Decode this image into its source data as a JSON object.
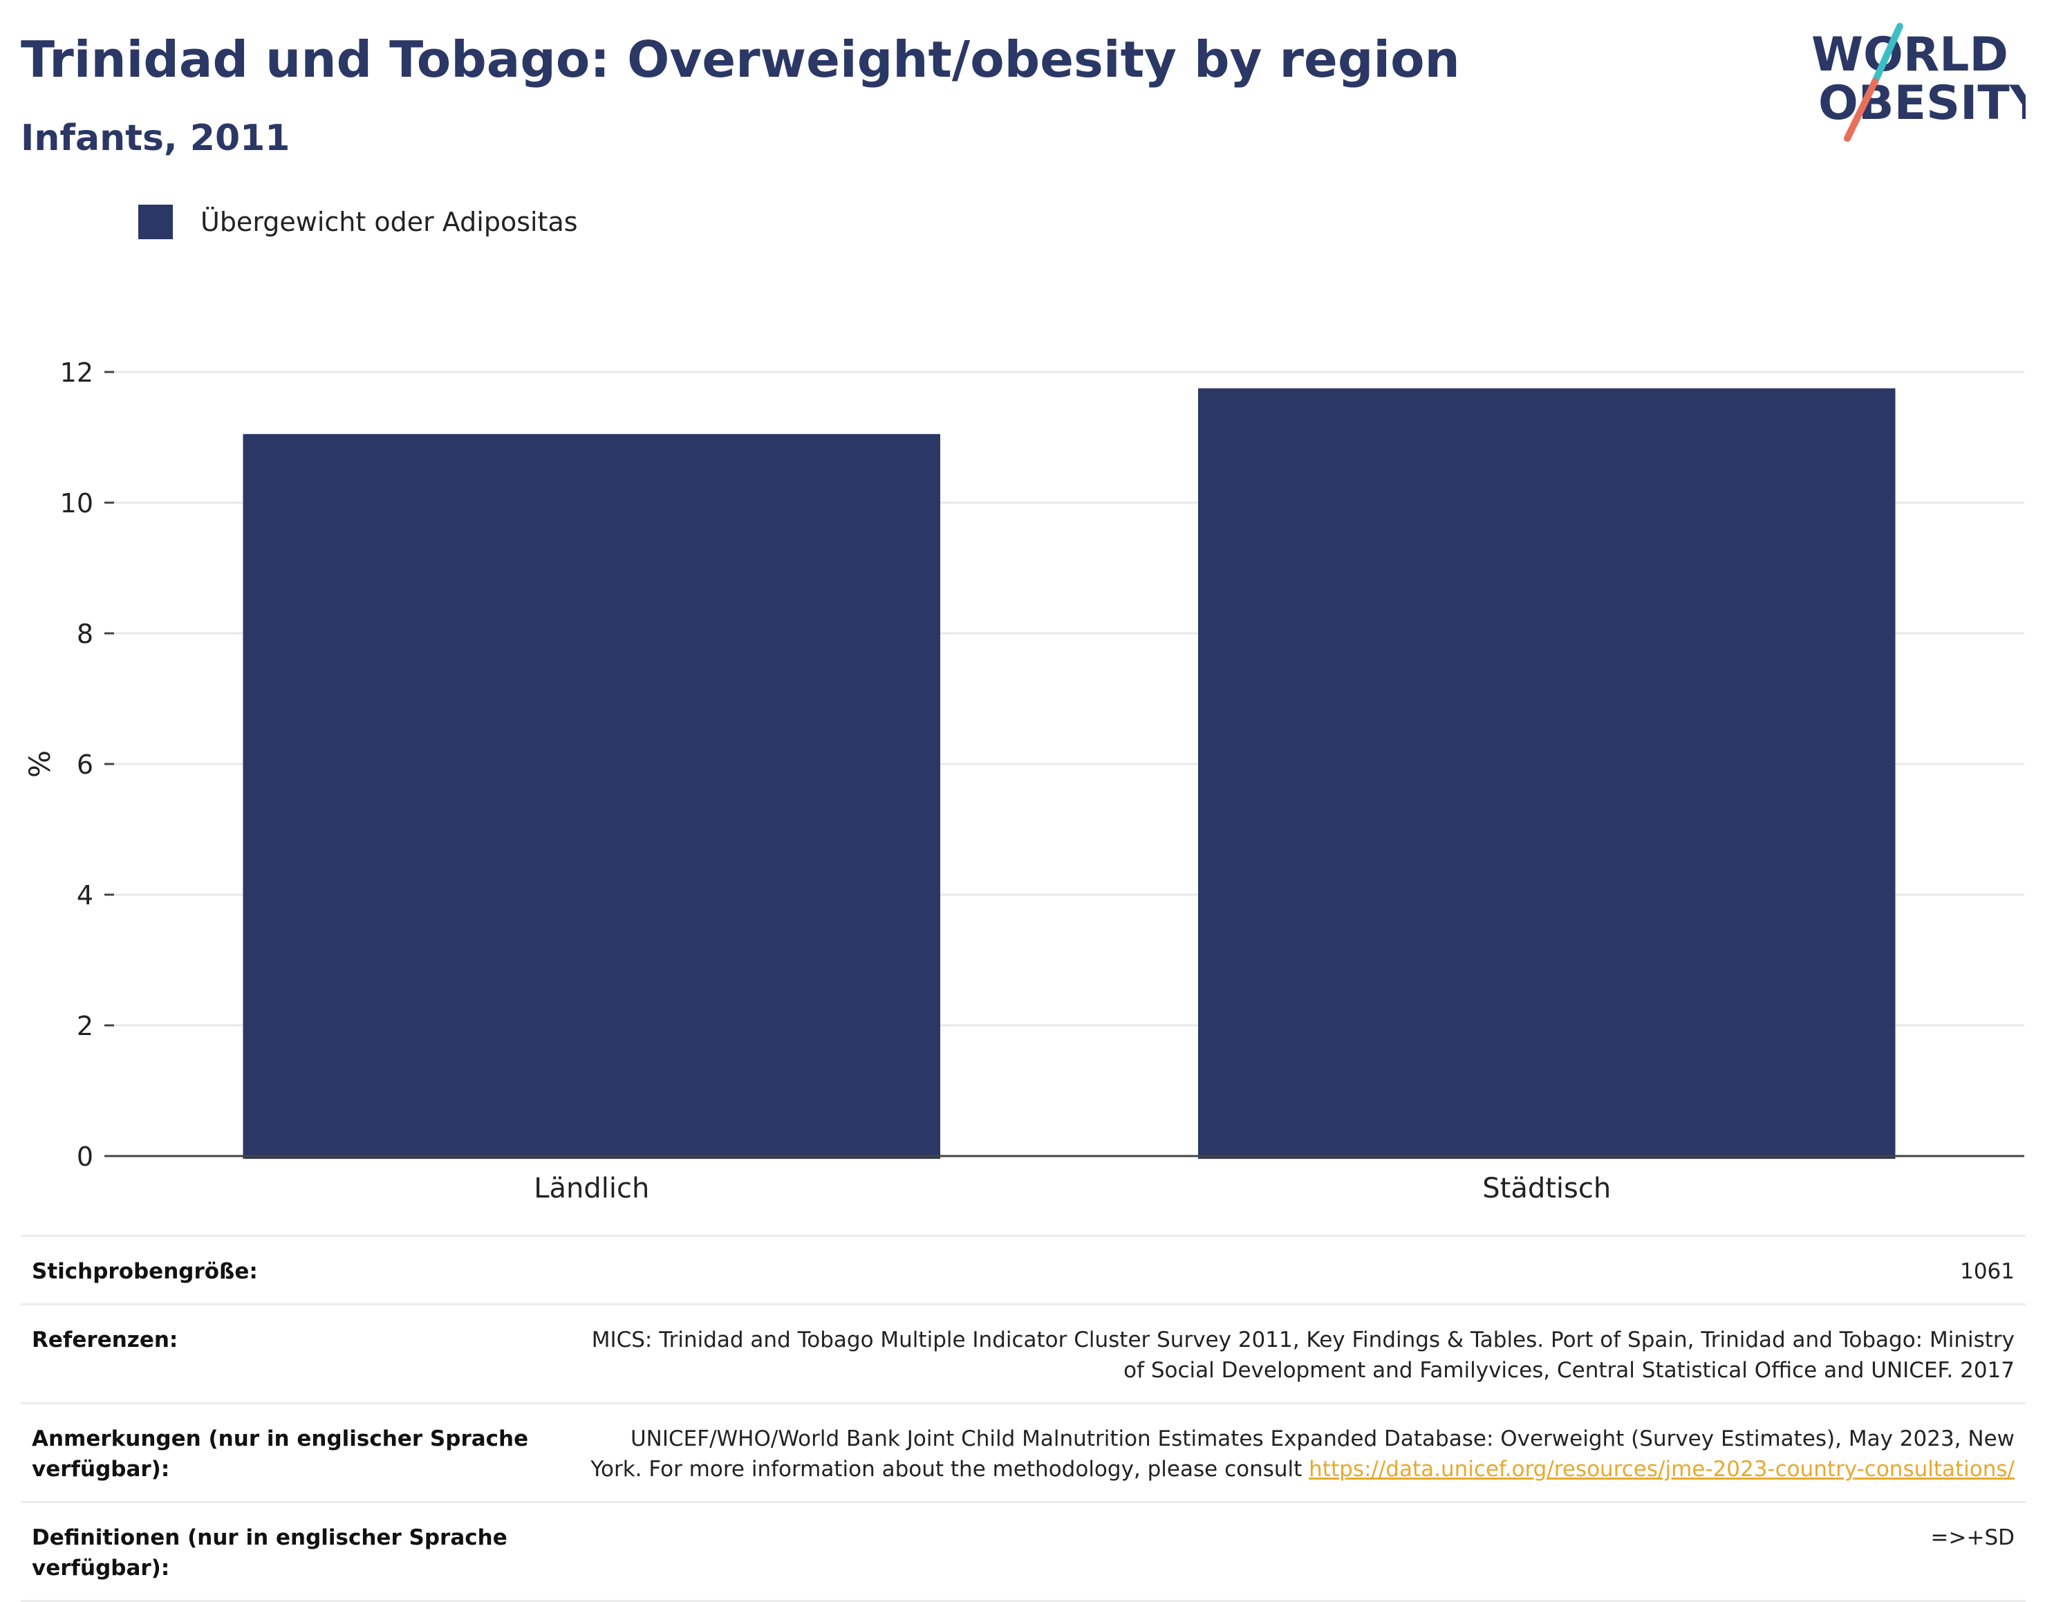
{
  "header": {
    "title": "Trinidad und Tobago: Overweight/obesity by region",
    "subtitle": "Infants, 2011"
  },
  "logo": {
    "line1": "WORLD",
    "line2": "OBESITY",
    "colors": {
      "text": "#2b3765",
      "slash_top": "#3bbfc4",
      "slash_bottom": "#e8705a"
    }
  },
  "legend": {
    "label": "Übergewicht oder Adipositas",
    "color": "#2b3765"
  },
  "chart_data": {
    "type": "bar",
    "categories": [
      "Ländlich",
      "Städtisch"
    ],
    "series": [
      {
        "name": "Übergewicht oder Adipositas",
        "values": [
          11.05,
          11.75
        ],
        "color": "#2b3765"
      }
    ],
    "ylabel": "%",
    "ylim": [
      0,
      12
    ],
    "yticks": [
      0,
      2,
      4,
      6,
      8,
      10,
      12
    ],
    "grid": true
  },
  "meta": {
    "sample": {
      "label": "Stichprobengröße:",
      "value": "1061"
    },
    "references": {
      "label": "Referenzen:",
      "value_line1": "MICS: Trinidad and Tobago Multiple Indicator Cluster Survey 2011, Key Findings & Tables. Port of Spain, Trinidad and Tobago: Ministry",
      "value_line2": "of Social Development and Familyvices, Central Statistical Office and UNICEF. 2017"
    },
    "notes": {
      "label_line1": "Anmerkungen (nur in englischer Sprache",
      "label_line2": "verfügbar):",
      "value_line1": "UNICEF/WHO/World Bank Joint Child Malnutrition Estimates Expanded Database: Overweight (Survey Estimates), May 2023, New",
      "value_line2": "York. For more information about the methodology, please consult ",
      "link": "https://data.unicef.org/resources/jme-2023-country-consultations/"
    },
    "definitions": {
      "label_line1": "Definitionen (nur in englischer Sprache",
      "label_line2": "verfügbar):",
      "value": "=>+SD"
    }
  }
}
